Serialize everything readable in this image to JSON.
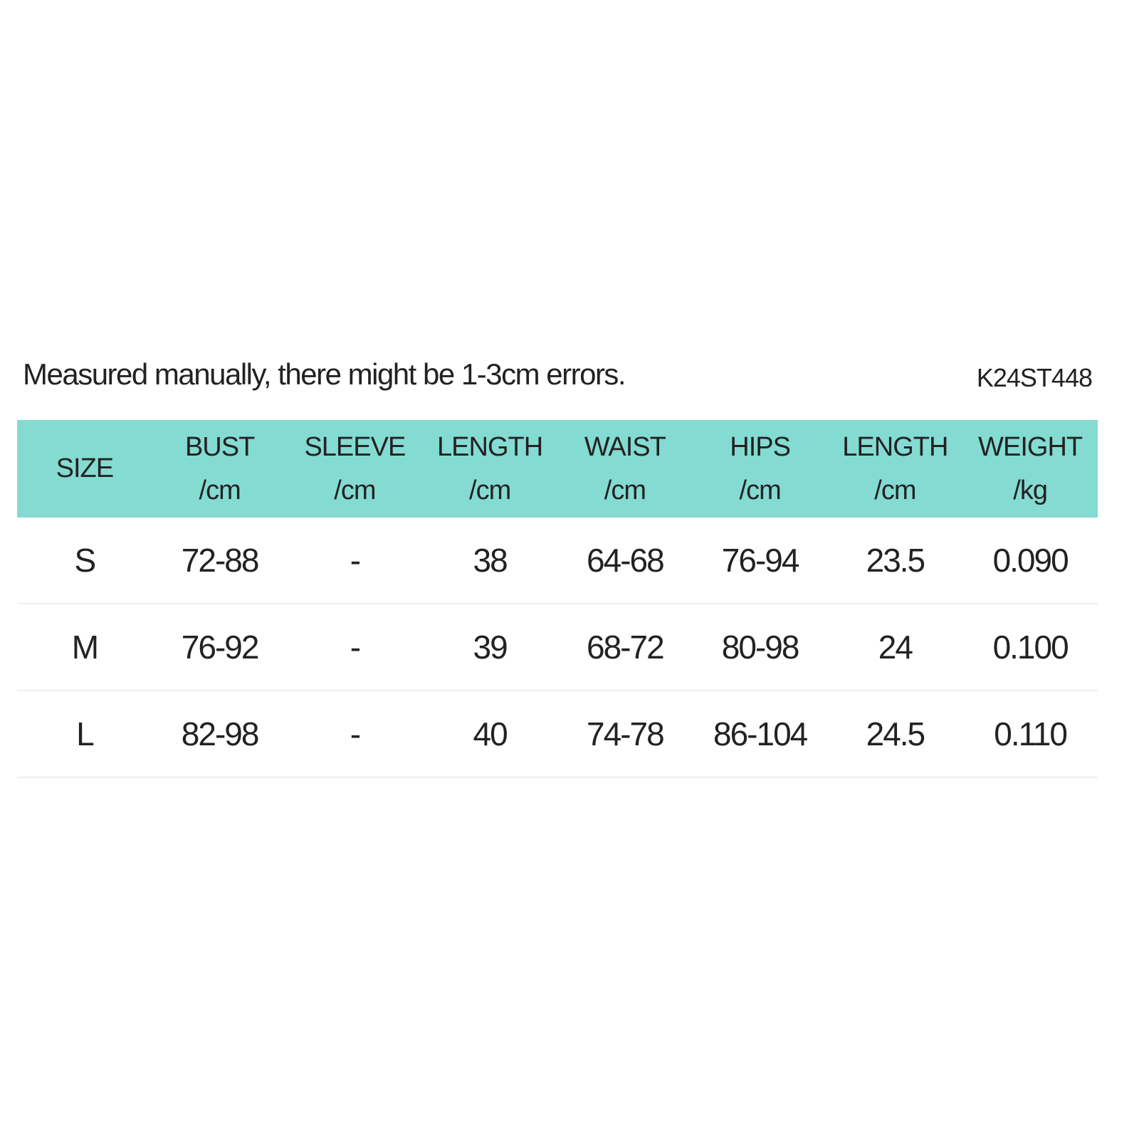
{
  "note": "Measured manually, there might be 1-3cm errors.",
  "product_code": "K24ST448",
  "colors": {
    "header_bg": "#84dbd2",
    "divider": "#eeeeee",
    "text": "#222222"
  },
  "table": {
    "headers": [
      {
        "name": "SIZE",
        "unit": ""
      },
      {
        "name": "BUST",
        "unit": "/cm"
      },
      {
        "name": "SLEEVE",
        "unit": "/cm"
      },
      {
        "name": "LENGTH",
        "unit": "/cm"
      },
      {
        "name": "WAIST",
        "unit": "/cm"
      },
      {
        "name": "HIPS",
        "unit": "/cm"
      },
      {
        "name": "LENGTH",
        "unit": "/cm"
      },
      {
        "name": "WEIGHT",
        "unit": "/kg"
      }
    ],
    "rows": [
      [
        "S",
        "72-88",
        "-",
        "38",
        "64-68",
        "76-94",
        "23.5",
        "0.090"
      ],
      [
        "M",
        "76-92",
        "-",
        "39",
        "68-72",
        "80-98",
        "24",
        "0.100"
      ],
      [
        "L",
        "82-98",
        "-",
        "40",
        "74-78",
        "86-104",
        "24.5",
        "0.110"
      ]
    ]
  }
}
